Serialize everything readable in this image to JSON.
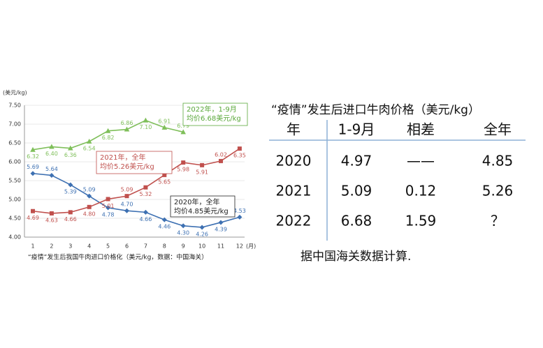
{
  "chart_data": {
    "type": "line",
    "y_label": "(美元/kg)",
    "x_unit": "(月)",
    "caption": "“疫情”发生后我国牛肉进口价格化（美元/kg，数据：中国海关）",
    "categories": [
      "1",
      "2",
      "3",
      "4",
      "5",
      "6",
      "7",
      "8",
      "9",
      "10",
      "11",
      "12"
    ],
    "ylim": [
      4.0,
      7.5
    ],
    "yticks": [
      {
        "value": 4.0,
        "label": "4.00"
      },
      {
        "value": 4.5,
        "label": "4.50"
      },
      {
        "value": 5.0,
        "label": "5.00"
      },
      {
        "value": 5.5,
        "label": "5.50"
      },
      {
        "value": 6.0,
        "label": "6.00"
      },
      {
        "value": 6.5,
        "label": "6.50"
      },
      {
        "value": 7.0,
        "label": "7.00"
      },
      {
        "value": 7.5,
        "label": "7.50"
      }
    ],
    "grid": true,
    "series": [
      {
        "color": "#3d70b2",
        "marker": "diamond",
        "values": [
          5.69,
          5.64,
          5.39,
          5.09,
          4.78,
          4.7,
          4.66,
          4.46,
          4.3,
          4.26,
          4.39,
          4.53
        ],
        "value_labels": [
          "5.69",
          "5.64",
          "5.39",
          "5.09",
          "4.78",
          "4.70",
          "4.66",
          "4.46",
          "4.30",
          "4.26",
          "4.39",
          "4.53"
        ]
      },
      {
        "color": "#c0504d",
        "marker": "square",
        "values": [
          4.69,
          4.63,
          4.66,
          4.8,
          5.01,
          5.09,
          5.32,
          5.65,
          5.98,
          5.91,
          6.02,
          6.35
        ],
        "value_labels": [
          "4.69",
          "4.63",
          "4.66",
          "4.80",
          "5.01",
          "5.09",
          "5.32",
          "5.65",
          "5.98",
          "5.91",
          "6.02",
          "6.35"
        ]
      },
      {
        "color": "#7fbf5a",
        "marker": "triangle",
        "values": [
          6.32,
          6.4,
          6.36,
          6.54,
          6.82,
          6.86,
          7.1,
          6.91,
          6.79,
          null,
          null,
          null
        ],
        "value_labels": [
          "6.32",
          "6.40",
          "6.36",
          "6.54",
          "6.82",
          "6.86",
          "7.10",
          "6.91",
          "6.79",
          null,
          null,
          null
        ]
      }
    ],
    "annotations": [
      {
        "lines": [
          "2022年，1-9月",
          "均价6.68美元/kg"
        ],
        "color": "#5aa83a"
      },
      {
        "lines": [
          "2021年，全年",
          "均价5.26美元/kg"
        ],
        "color": "#c0504d"
      },
      {
        "lines": [
          "2020年，全年",
          "均价4.85美元/kg"
        ],
        "color": "#222222"
      }
    ]
  },
  "table": {
    "title": "“疫情”发生后进口牛肉价格（美元/kg）",
    "header": [
      "年",
      "1-9月",
      "相差",
      "全年"
    ],
    "rows": [
      [
        "2020",
        "4.97",
        "——",
        "4.85"
      ],
      [
        "2021",
        "5.09",
        "0.12",
        "5.26"
      ],
      [
        "2022",
        "6.68",
        "1.59",
        "？"
      ]
    ],
    "note": "据中国海关数据计算."
  }
}
